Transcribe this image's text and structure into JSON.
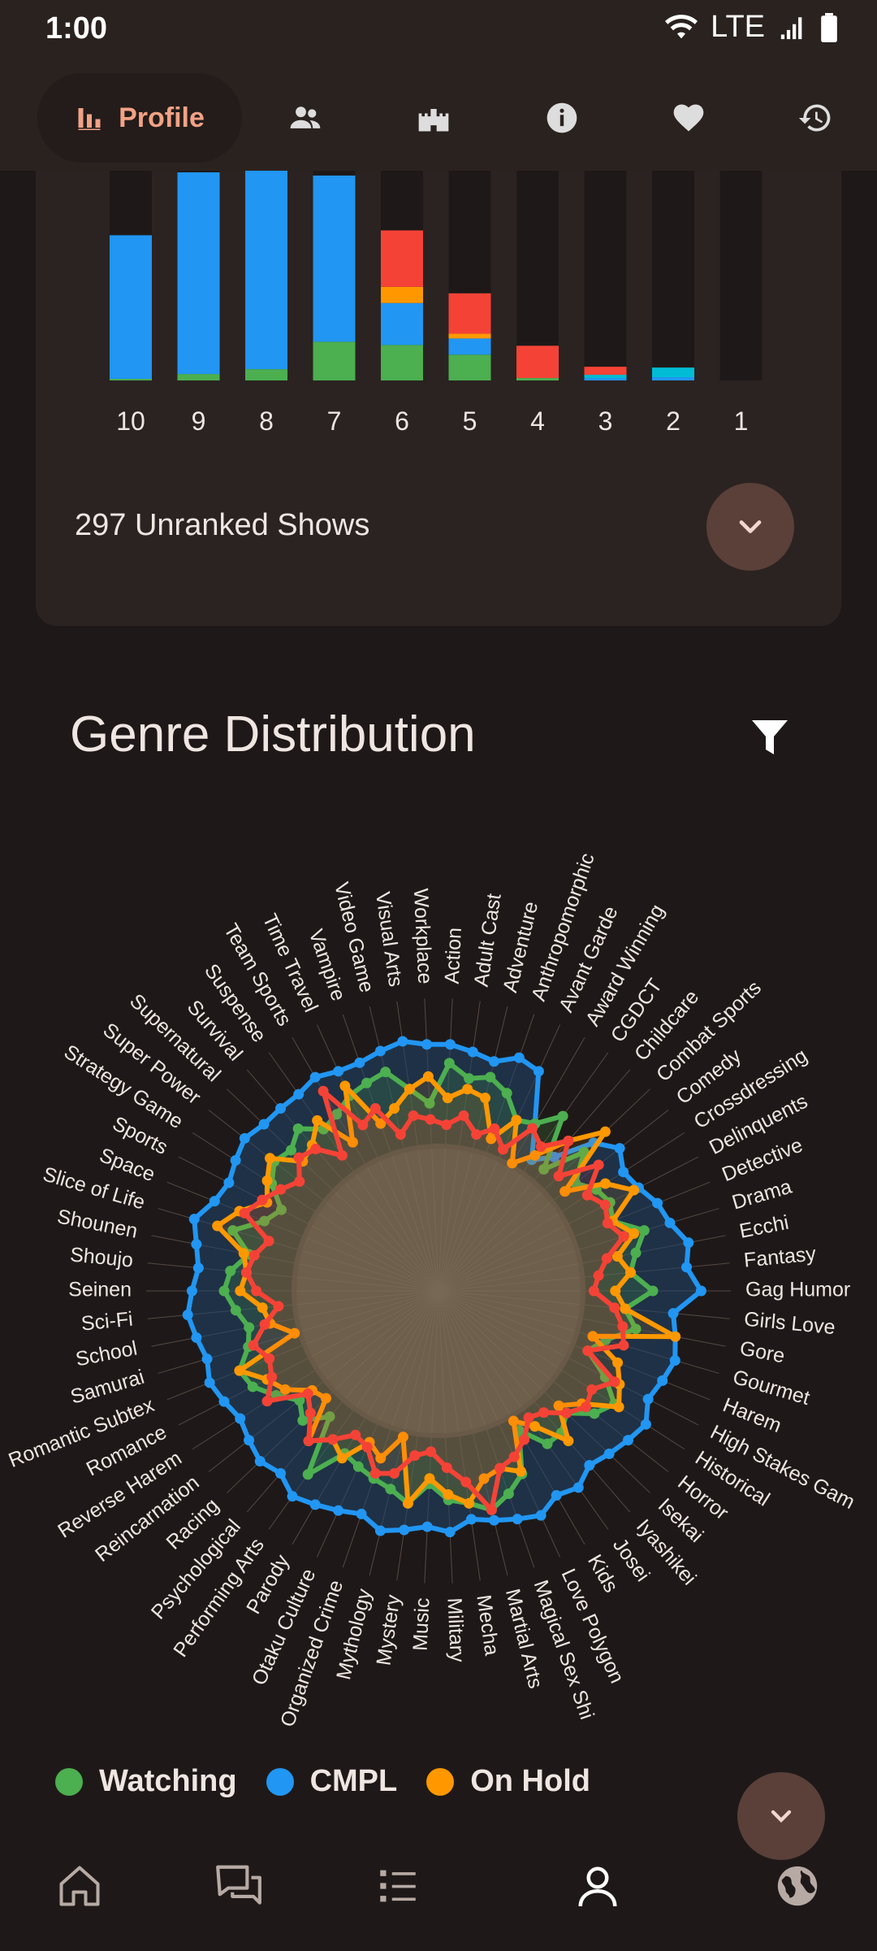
{
  "status": {
    "time": "1:00",
    "network": "LTE"
  },
  "topbar": {
    "active_label": "Profile",
    "tabs": [
      "profile-icon",
      "people-icon",
      "castle-icon",
      "info-icon",
      "heart-icon",
      "history-icon"
    ]
  },
  "score_chart": {
    "categories": [
      "10",
      "9",
      "8",
      "7",
      "6",
      "5",
      "4",
      "3",
      "2",
      "1"
    ],
    "colors": {
      "Watching": "#4caf50",
      "CMPL": "#2196f3",
      "On Hold": "#ff9800",
      "Dropped": "#f44336",
      "Planning": "#00bcd4"
    },
    "chart_data": {
      "type": "bar",
      "categories": [
        "10",
        "9",
        "8",
        "7",
        "6",
        "5",
        "4",
        "3",
        "2",
        "1"
      ],
      "series": [
        {
          "name": "Watching",
          "values": [
            2,
            8,
            14,
            48,
            44,
            32,
            3,
            0,
            0,
            0
          ]
        },
        {
          "name": "CMPL",
          "values": [
            178,
            250,
            246,
            206,
            52,
            20,
            0,
            3,
            4,
            0
          ]
        },
        {
          "name": "On Hold",
          "values": [
            0,
            0,
            0,
            0,
            20,
            6,
            0,
            0,
            0,
            0
          ]
        },
        {
          "name": "Dropped",
          "values": [
            0,
            0,
            0,
            0,
            70,
            50,
            40,
            10,
            0,
            0
          ]
        },
        {
          "name": "Planning",
          "values": [
            0,
            0,
            0,
            0,
            0,
            0,
            0,
            4,
            12,
            0
          ]
        }
      ],
      "ylim": [
        0,
        260
      ]
    },
    "unranked_label": "297 Unranked Shows"
  },
  "genre": {
    "title": "Genre Distribution",
    "labels": [
      "Action",
      "Adult Cast",
      "Adventure",
      "Anthropomorphic",
      "Avant Garde",
      "Award Winning",
      "CGDCT",
      "Childcare",
      "Combat Sports",
      "Comedy",
      "Crossdressing",
      "Delinquents",
      "Detective",
      "Drama",
      "Ecchi",
      "Fantasy",
      "Gag Humor",
      "Girls Love",
      "Gore",
      "Gourmet",
      "Harem",
      "High Stakes Gam",
      "Historical",
      "Horror",
      "Isekai",
      "Iyashikei",
      "Josei",
      "Kids",
      "Love Polygon",
      "Magical Sex Shi",
      "Martial Arts",
      "Mecha",
      "Military",
      "Music",
      "Mystery",
      "Mythology",
      "Organized Crime",
      "Otaku Culture",
      "Parody",
      "Performing Arts",
      "Psychological",
      "Racing",
      "Reincarnation",
      "Reverse Harem",
      "Romance",
      "Romantic Subtex",
      "Samurai",
      "School",
      "Sci-Fi",
      "Seinen",
      "Shoujo",
      "Shounen",
      "Slice of Life",
      "Space",
      "Sports",
      "Strategy Game",
      "Super Power",
      "Supernatural",
      "Survival",
      "Suspense",
      "Team Sports",
      "Time Travel",
      "Vampire",
      "Video Game",
      "Visual Arts",
      "Workplace"
    ],
    "chart_data": {
      "type": "radar",
      "series": [
        {
          "name": "CMPL",
          "color": "#2196f3",
          "values": [
            0.92,
            0.9,
            0.88,
            0.92,
            0.9,
            0.72,
            0.6,
            0.66,
            0.8,
            0.86,
            0.82,
            0.84,
            0.88,
            0.9,
            0.95,
            0.93,
            0.98,
            0.88,
            0.9,
            0.92,
            0.9,
            0.88,
            0.92,
            0.9,
            0.88,
            0.86,
            0.9,
            0.88,
            0.92,
            0.9,
            0.88,
            0.86,
            0.9,
            0.88,
            0.9,
            0.92,
            0.88,
            0.9,
            0.92,
            0.94,
            0.9,
            0.92,
            0.9,
            0.88,
            0.9,
            0.92,
            0.9,
            0.92,
            0.94,
            0.92,
            0.9,
            0.92,
            0.95,
            0.9,
            0.88,
            0.9,
            0.92,
            0.9,
            0.9,
            0.9,
            0.92,
            0.9,
            0.9,
            0.92,
            0.94,
            0.92
          ]
        },
        {
          "name": "Watching",
          "color": "#4caf50",
          "values": [
            0.85,
            0.8,
            0.82,
            0.78,
            0.7,
            0.72,
            0.8,
            0.6,
            0.75,
            0.65,
            0.7,
            0.72,
            0.7,
            0.8,
            0.75,
            0.72,
            0.8,
            0.7,
            0.75,
            0.65,
            0.6,
            0.7,
            0.78,
            0.74,
            0.66,
            0.7,
            0.7,
            0.6,
            0.75,
            0.8,
            0.84,
            0.8,
            0.78,
            0.72,
            0.8,
            0.76,
            0.74,
            0.72,
            0.7,
            0.84,
            0.62,
            0.7,
            0.66,
            0.72,
            0.78,
            0.8,
            0.74,
            0.72,
            0.76,
            0.8,
            0.78,
            0.72,
            0.8,
            0.7,
            0.66,
            0.74,
            0.78,
            0.76,
            0.8,
            0.74,
            0.76,
            0.8,
            0.82,
            0.84,
            0.76,
            0.7
          ]
        },
        {
          "name": "On Hold",
          "color": "#ff9800",
          "values": [
            0.72,
            0.76,
            0.74,
            0.6,
            0.7,
            0.55,
            0.62,
            0.74,
            0.86,
            0.6,
            0.74,
            0.82,
            0.7,
            0.76,
            0.68,
            0.72,
            0.66,
            0.7,
            0.9,
            0.6,
            0.72,
            0.76,
            0.8,
            0.68,
            0.62,
            0.74,
            0.62,
            0.56,
            0.74,
            0.7,
            0.72,
            0.8,
            0.76,
            0.7,
            0.8,
            0.56,
            0.66,
            0.62,
            0.72,
            0.68,
            0.74,
            0.58,
            0.6,
            0.68,
            0.72,
            0.8,
            0.56,
            0.64,
            0.66,
            0.74,
            0.72,
            0.74,
            0.86,
            0.8,
            0.72,
            0.76,
            0.8,
            0.7,
            0.72,
            0.78,
            0.64,
            0.84,
            0.66,
            0.7,
            0.76,
            0.8
          ]
        },
        {
          "name": "Dropped",
          "color": "#f44336",
          "values": [
            0.62,
            0.66,
            0.6,
            0.64,
            0.58,
            0.7,
            0.66,
            0.74,
            0.62,
            0.76,
            0.66,
            0.7,
            0.68,
            0.72,
            0.64,
            0.6,
            0.58,
            0.66,
            0.7,
            0.72,
            0.6,
            0.74,
            0.68,
            0.7,
            0.66,
            0.6,
            0.58,
            0.64,
            0.68,
            0.7,
            0.84,
            0.72,
            0.66,
            0.6,
            0.62,
            0.7,
            0.72,
            0.64,
            0.62,
            0.68,
            0.74,
            0.66,
            0.62,
            0.76,
            0.7,
            0.68,
            0.72,
            0.66,
            0.6,
            0.68,
            0.72,
            0.7,
            0.66,
            0.78,
            0.74,
            0.7,
            0.66,
            0.72,
            0.7,
            0.62,
            0.86,
            0.68,
            0.72,
            0.6,
            0.66,
            0.64
          ]
        }
      ]
    }
  },
  "legend": [
    {
      "label": "Watching",
      "color": "#4caf50"
    },
    {
      "label": "CMPL",
      "color": "#2196f3"
    },
    {
      "label": "On Hold",
      "color": "#ff9800"
    }
  ],
  "bottomnav": [
    "home-icon",
    "forum-icon",
    "list-icon",
    "profile-icon",
    "globe-icon"
  ]
}
